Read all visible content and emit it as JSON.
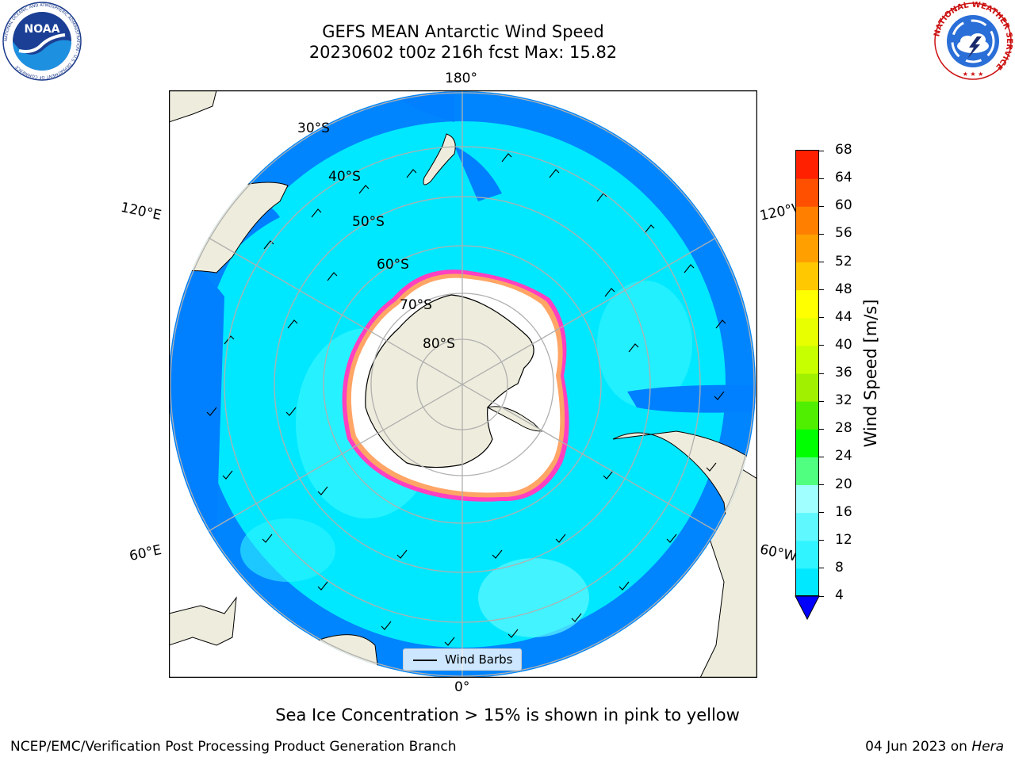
{
  "title": {
    "line1": "GEFS MEAN Antarctic Wind Speed",
    "line2": "20230602 t00z 216h fcst   Max: 15.82"
  },
  "logos": {
    "noaa": {
      "text": "NOAA",
      "ring_text": "NATIONAL OCEANIC AND ATMOSPHERIC ADMINISTRATION · U.S. DEPARTMENT OF COMMERCE",
      "icon": "noaa-logo"
    },
    "nws": {
      "ring_text": "NATIONAL WEATHER SERVICE",
      "icon": "nws-logo"
    }
  },
  "map": {
    "projection": "south-polar-stereographic",
    "longitude_labels": {
      "top": "180°",
      "bottom": "0°",
      "left_upper": "120°E",
      "left_lower": "60°E",
      "right_upper": "120°W",
      "right_lower": "60°W"
    },
    "latitude_labels": [
      "30°S",
      "40°S",
      "50°S",
      "60°S",
      "70°S",
      "80°S"
    ],
    "legend_label": "Wind Barbs",
    "colors": {
      "land": "#eeecdc",
      "ice": "#ffffff",
      "grid": "#b0b0b0"
    }
  },
  "colorbar": {
    "title": "Wind Speed [m/s]",
    "ticks": [
      "4",
      "8",
      "12",
      "16",
      "20",
      "24",
      "28",
      "32",
      "36",
      "40",
      "44",
      "48",
      "52",
      "56",
      "60",
      "64",
      "68"
    ],
    "colors": [
      "#0080ff",
      "#00e8ff",
      "#30f4ff",
      "#60f8ff",
      "#a0ffff",
      "#50ff80",
      "#00ff00",
      "#50ee00",
      "#a0f000",
      "#c8ff00",
      "#e8ff00",
      "#ffff00",
      "#ffc800",
      "#ffa000",
      "#ff8000",
      "#ff5000",
      "#ff2000",
      "#ff0000"
    ],
    "under_color": "#0000ff"
  },
  "caption": "Sea Ice Concentration > 15% is shown in pink to yellow",
  "footer": {
    "left": "NCEP/EMC/Verification Post Processing Product Generation Branch",
    "date": "04 Jun 2023 on ",
    "machine": "Hera"
  }
}
